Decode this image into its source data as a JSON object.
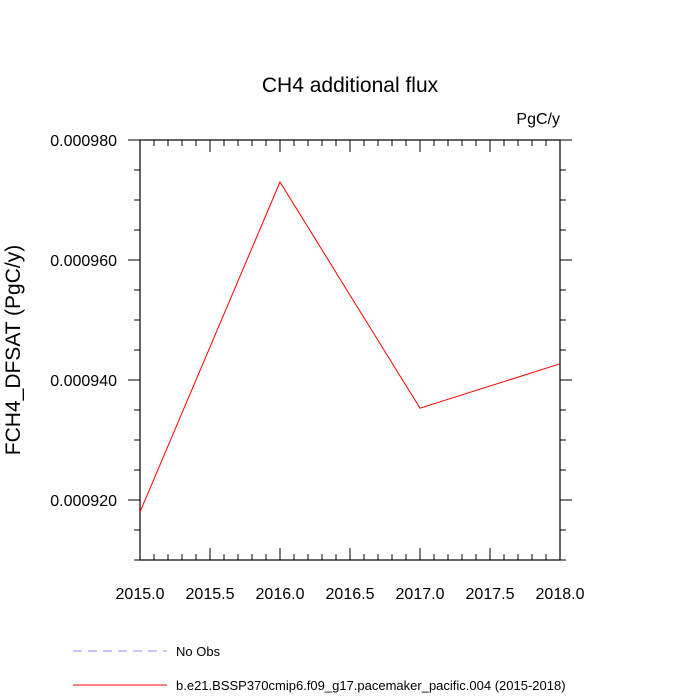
{
  "chart_data": {
    "type": "line",
    "title": "CH4 additional flux",
    "units_label": "PgC/y",
    "xlabel": "",
    "ylabel": "FCH4_DFSAT  (PgC/y)",
    "xlim": [
      2015.0,
      2018.0
    ],
    "ylim": [
      0.00091,
      0.00098
    ],
    "x_ticks": [
      2015.0,
      2015.5,
      2016.0,
      2016.5,
      2017.0,
      2017.5,
      2018.0
    ],
    "x_tick_labels": [
      "2015.0",
      "2015.5",
      "2016.0",
      "2016.5",
      "2017.0",
      "2017.5",
      "2018.0"
    ],
    "y_ticks": [
      0.00092,
      0.00094,
      0.00096,
      0.00098
    ],
    "y_tick_labels": [
      "0.000920",
      "0.000940",
      "0.000960",
      "0.000980"
    ],
    "grid": false,
    "legend_position": "bottom-left",
    "series": [
      {
        "name": "b.e21.BSSP370cmip6.f09_g17.pacemaker_pacific.004 (2015-2018)",
        "color": "#ff0000",
        "style": "solid",
        "x": [
          2015.0,
          2016.0,
          2017.0,
          2018.0
        ],
        "y": [
          0.000918,
          0.000973,
          0.0009353,
          0.0009427
        ]
      }
    ],
    "legend": [
      {
        "label": "No Obs",
        "color": "#8888ff",
        "style": "dashed"
      },
      {
        "label": "b.e21.BSSP370cmip6.f09_g17.pacemaker_pacific.004 (2015-2018)",
        "color": "#ff0000",
        "style": "solid"
      }
    ]
  }
}
